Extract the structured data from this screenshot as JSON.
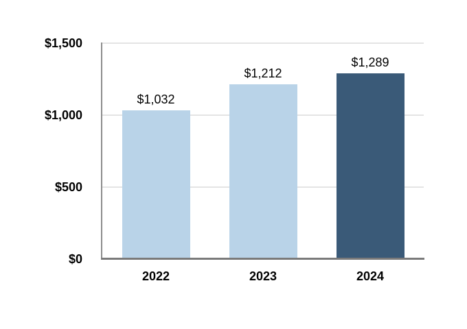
{
  "chart_data": {
    "type": "bar",
    "title": "",
    "categories": [
      "2022",
      "2023",
      "2024"
    ],
    "values": [
      1032,
      1212,
      1289
    ],
    "value_labels": [
      "$1,032",
      "$1,212",
      "$1,289"
    ],
    "bar_colors": [
      "#b9d3e8",
      "#b9d3e8",
      "#3a5a78"
    ],
    "ylim": [
      0,
      1500
    ],
    "y_ticks": [
      {
        "value": 0,
        "label": "$0"
      },
      {
        "value": 500,
        "label": "$500"
      },
      {
        "value": 1000,
        "label": "$1,000"
      },
      {
        "value": 1500,
        "label": "$1,500"
      }
    ],
    "xlabel": "",
    "ylabel": "",
    "grid": true,
    "legend": false
  },
  "colors": {
    "background": "#ffffff",
    "bar_light": "#b9d3e8",
    "bar_dark": "#3a5a78",
    "gridline": "#e4e4e4",
    "axis_vertical": "#8c8c8c",
    "axis_horizontal": "#7a7a7a",
    "text": "#000000"
  }
}
